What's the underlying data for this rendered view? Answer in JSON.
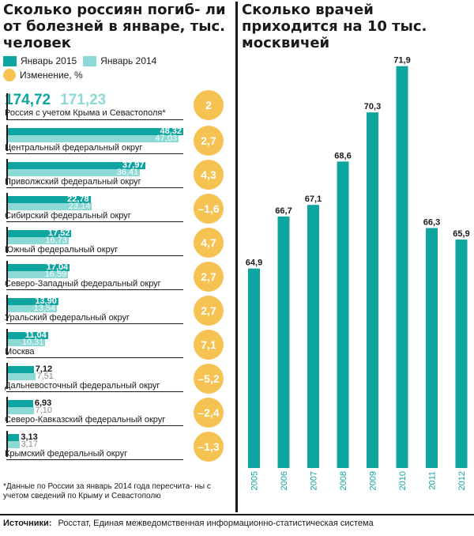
{
  "left": {
    "title": "Сколько россиян погиб- ли от болезней в январе, тыс. человек",
    "legend": {
      "jan2015": "Январь 2015",
      "jan2014": "Январь 2014",
      "change": "Изменение, %"
    },
    "footnote": "*Данные по России за январь 2014 года пересчита- ны с учетом сведений по Крыму и Севастополю"
  },
  "right": {
    "title": "Сколько врачей приходится на 10 тыс. москвичей"
  },
  "source": {
    "label": "Источники:",
    "text": "Росстат, Единая межведомственная информационно-статистическая система"
  },
  "colors": {
    "jan2015": "#0ea5a1",
    "jan2014": "#8dd9d5",
    "change": "#f6c251",
    "doctors_bar": "#0ea5a1"
  },
  "chart_data": [
    {
      "type": "bar",
      "orientation": "horizontal",
      "title": "Сколько россиян погиб- ли от болезней в январе, тыс. человек",
      "series": [
        {
          "name": "Январь 2015",
          "values": [
            174.72,
            48.32,
            37.97,
            22.78,
            17.52,
            17.04,
            13.9,
            11.04,
            7.12,
            6.93,
            3.13
          ],
          "labels": [
            "174,72",
            "48,32",
            "37,97",
            "22,78",
            "17,52",
            "17,04",
            "13,90",
            "11,04",
            "7,12",
            "6,93",
            "3,13"
          ]
        },
        {
          "name": "Январь 2014",
          "values": [
            171.23,
            47.03,
            36.41,
            23.14,
            16.73,
            16.59,
            13.54,
            10.31,
            7.51,
            7.1,
            3.17
          ],
          "labels": [
            "171,23",
            "47,03",
            "36,41",
            "23,14",
            "16,73",
            "16,59",
            "13,54",
            "10,31",
            "7,51",
            "7,10",
            "3,17"
          ]
        },
        {
          "name": "Изменение, %",
          "values": [
            2,
            2.7,
            4.3,
            -1.6,
            4.7,
            2.7,
            2.7,
            7.1,
            -5.2,
            -2.4,
            -1.3
          ],
          "labels": [
            "2",
            "2,7",
            "4,3",
            "–1,6",
            "4,7",
            "2,7",
            "2,7",
            "7,1",
            "–5,2",
            "–2,4",
            "–1,3"
          ]
        }
      ],
      "categories": [
        "Россия с учетом Крыма и Севастополя*",
        "Центральный федеральный округ",
        "Приволжский федеральный округ",
        "Сибирский федеральный округ",
        "Южный федеральный округ",
        "Северо-Западный федеральный округ",
        "Уральский федеральный округ",
        "Москва",
        "Дальневосточный федеральный округ",
        "Северо-Кавказский федеральный округ",
        "Крымский федеральный округ"
      ],
      "legend": "top-left",
      "grid": false
    },
    {
      "type": "bar",
      "title": "Сколько врачей приходится на 10 тыс. москвичей",
      "categories": [
        "2005",
        "2006",
        "2007",
        "2008",
        "2009",
        "2010",
        "2011",
        "2012"
      ],
      "values": [
        64.9,
        66.7,
        67.1,
        68.6,
        70.3,
        71.9,
        66.3,
        65.9
      ],
      "labels": [
        "64,9",
        "66,7",
        "67,1",
        "68,6",
        "70,3",
        "71,9",
        "66,3",
        "65,9"
      ],
      "ylim": [
        58,
        72
      ],
      "grid": false
    }
  ]
}
